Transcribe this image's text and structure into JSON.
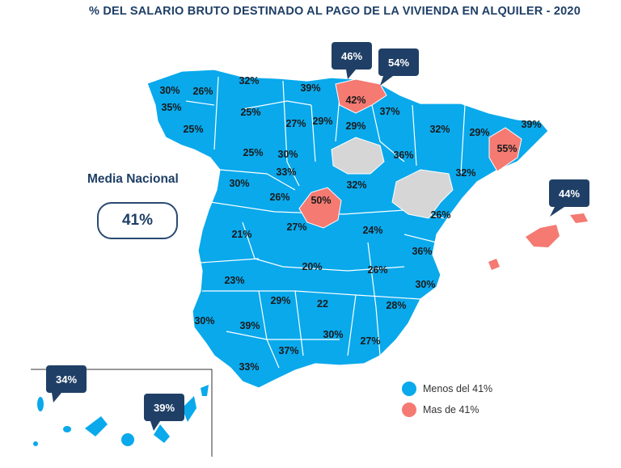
{
  "title": "% DEL SALARIO BRUTO DESTINADO AL PAGO DE LA VIVIENDA EN ALQUILER - 2020",
  "national_average": {
    "label": "Media Nacional",
    "value": "41%"
  },
  "colors": {
    "below": "#09a9ec",
    "above": "#f47a72",
    "no_data": "#d6d6d6",
    "callout": "#1f3f66"
  },
  "legend": [
    {
      "label": "Menos del 41%",
      "color": "#09a9ec"
    },
    {
      "label": "Mas de 41%",
      "color": "#f47a72"
    }
  ],
  "province_labels": [
    "30%",
    "26%",
    "32%",
    "39%",
    "35%",
    "25%",
    "25%",
    "27%",
    "29%",
    "29%",
    "37%",
    "32%",
    "29%",
    "39%",
    "42%",
    "25%",
    "30%",
    "36%",
    "55%",
    "30%",
    "33%",
    "32%",
    "32%",
    "26%",
    "50%",
    "27%",
    "26%",
    "21%",
    "24%",
    "36%",
    "20%",
    "26%",
    "23%",
    "30%",
    "29%",
    "22",
    "28%",
    "30%",
    "39%",
    "30%",
    "27%",
    "37%",
    "33%"
  ],
  "callouts": [
    "46%",
    "54%",
    "44%",
    "34%",
    "39%"
  ]
}
